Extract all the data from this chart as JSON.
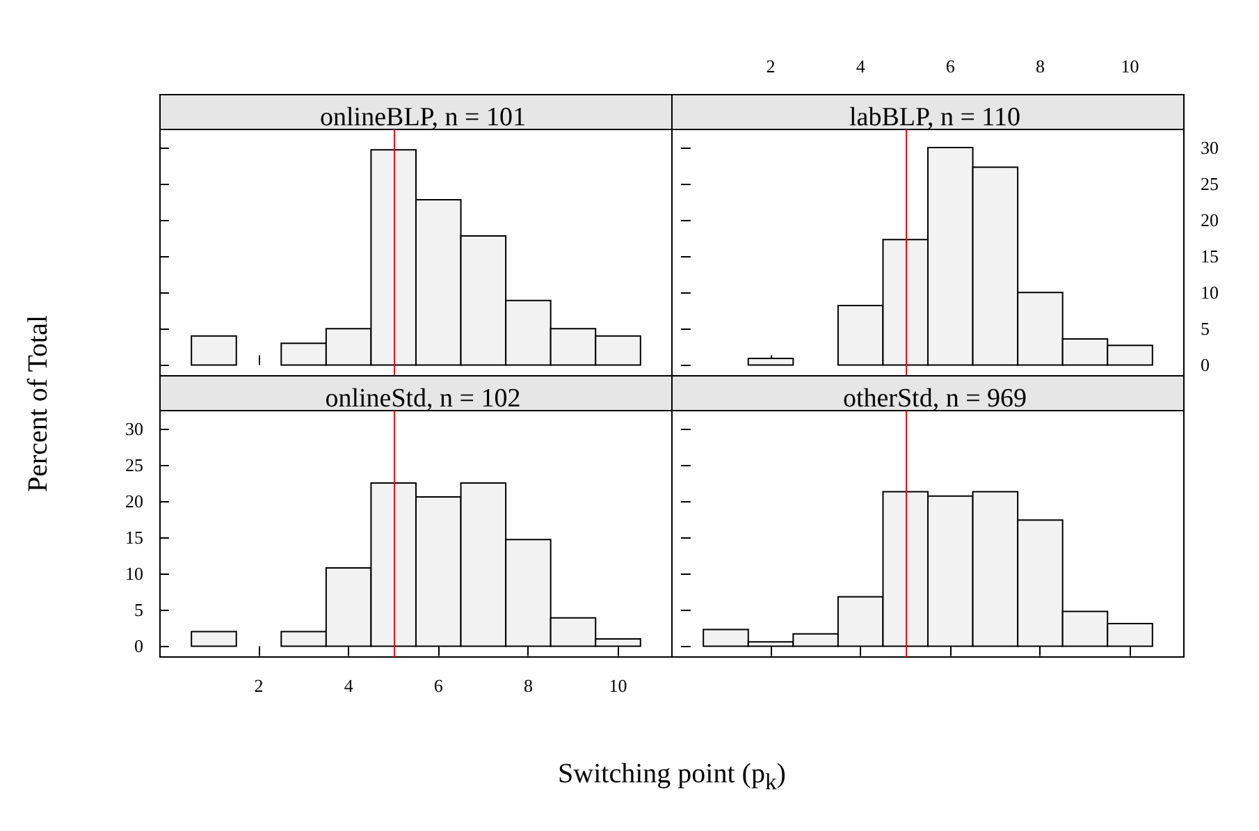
{
  "chart_data": [
    {
      "type": "histogram",
      "title": "onlineBLP, n = 101",
      "bins": [
        0.5,
        1.5,
        2.5,
        3.5,
        4.5,
        5.5,
        6.5,
        7.5,
        8.5,
        9.5,
        10.5
      ],
      "values": [
        4.0,
        0,
        3.0,
        5.0,
        29.7,
        22.8,
        17.8,
        8.9,
        5.0,
        4.0
      ],
      "color": "#f2f2f2",
      "xlim": [
        -0.2,
        11.2
      ],
      "ylim": [
        -1.5,
        32.5
      ],
      "xticks": [
        2,
        4,
        6,
        8,
        10
      ],
      "yticks": [
        0,
        5,
        10,
        15,
        20,
        25,
        30
      ],
      "ref_lines": [
        {
          "axis": "x",
          "value": 5,
          "color": "#ff0000"
        }
      ],
      "tick_labels": false
    },
    {
      "type": "histogram",
      "title": "labBLP, n = 110",
      "bins": [
        0.5,
        1.5,
        2.5,
        3.5,
        4.5,
        5.5,
        6.5,
        7.5,
        8.5,
        9.5,
        10.5
      ],
      "values": [
        0,
        0.9,
        0,
        8.2,
        17.3,
        30.0,
        27.3,
        10.0,
        3.6,
        2.7
      ],
      "color": "#f2f2f2",
      "xlim": [
        -0.2,
        11.2
      ],
      "ylim": [
        -1.5,
        32.5
      ],
      "xticks": [
        2,
        4,
        6,
        8,
        10
      ],
      "yticks": [
        0,
        5,
        10,
        15,
        20,
        25,
        30
      ],
      "ref_lines": [
        {
          "axis": "x",
          "value": 5,
          "color": "#ff0000"
        }
      ]
    },
    {
      "type": "histogram",
      "title": "onlineStd, n = 102",
      "xlabel": "Switching point (p$_{k}$)",
      "ylabel": "Percent of Total",
      "bins": [
        0.5,
        1.5,
        2.5,
        3.5,
        4.5,
        5.5,
        6.5,
        7.5,
        8.5,
        9.5,
        10.5
      ],
      "values": [
        2.0,
        0,
        2.0,
        10.8,
        22.5,
        20.6,
        22.5,
        14.7,
        3.9,
        1.0
      ],
      "color": "#f2f2f2",
      "xlim": [
        -0.2,
        11.2
      ],
      "ylim": [
        -1.5,
        32.5
      ],
      "xticks": [
        2,
        4,
        6,
        8,
        10
      ],
      "yticks": [
        0,
        5,
        10,
        15,
        20,
        25,
        30
      ],
      "ref_lines": [
        {
          "axis": "x",
          "value": 5,
          "color": "#ff0000"
        }
      ]
    },
    {
      "type": "histogram",
      "title": "otherStd, n = 969",
      "bins": [
        0.5,
        1.5,
        2.5,
        3.5,
        4.5,
        5.5,
        6.5,
        7.5,
        8.5,
        9.5,
        10.5
      ],
      "values": [
        2.3,
        0.6,
        1.7,
        6.8,
        21.3,
        20.7,
        21.3,
        17.4,
        4.8,
        3.1
      ],
      "color": "#f2f2f2",
      "xlim": [
        -0.2,
        11.2
      ],
      "ylim": [
        -1.5,
        32.5
      ],
      "xticks": [
        2,
        4,
        6,
        8,
        10
      ],
      "yticks": [
        0,
        5,
        10,
        15,
        20,
        25,
        30
      ],
      "ref_lines": [
        {
          "axis": "x",
          "value": 5,
          "color": "#ff0000"
        }
      ],
      "tick_labels": false
    }
  ]
}
